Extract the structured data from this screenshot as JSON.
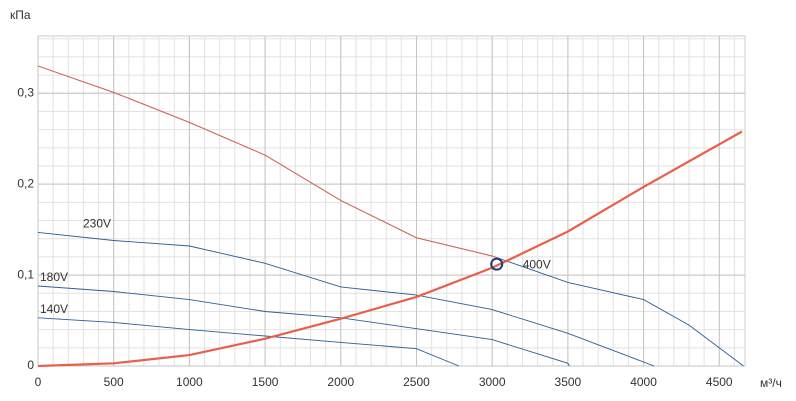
{
  "chart_data": {
    "type": "line",
    "y_unit": "кПа",
    "x_unit": "м³/ч",
    "xlim": [
      0,
      4670
    ],
    "ylim": [
      0,
      0.363
    ],
    "xticks": [
      0,
      500,
      1000,
      1500,
      2000,
      2500,
      3000,
      3500,
      4000,
      4500
    ],
    "yticks": [
      0,
      {
        "value": 0.1,
        "label": "0,1"
      },
      {
        "value": 0.2,
        "label": "0,2"
      },
      {
        "value": 0.3,
        "label": "0,3"
      }
    ],
    "grid": true,
    "minor_grid": {
      "x": 100,
      "y": 0.02
    },
    "series": [
      {
        "name": "400V",
        "color": "#2f5f8f",
        "highlight_color": "#e8604a",
        "width": 0.9,
        "x": [
          0,
          500,
          1000,
          1500,
          2000,
          2500,
          3000,
          3500,
          4000,
          4300,
          4660
        ],
        "values": [
          0.33,
          0.301,
          0.268,
          0.232,
          0.182,
          0.141,
          0.121,
          0.092,
          0.073,
          0.045,
          0
        ]
      },
      {
        "name": "230V",
        "color": "#2f5f8f",
        "width": 0.9,
        "x": [
          0,
          500,
          1000,
          1500,
          2000,
          2500,
          3000,
          3500,
          4070
        ],
        "values": [
          0.147,
          0.138,
          0.132,
          0.113,
          0.087,
          0.078,
          0.062,
          0.036,
          0
        ]
      },
      {
        "name": "180V",
        "color": "#2f5f8f",
        "width": 0.9,
        "x": [
          0,
          500,
          1000,
          1500,
          2000,
          2500,
          3000,
          3500,
          3510
        ],
        "values": [
          0.088,
          0.082,
          0.073,
          0.06,
          0.053,
          0.041,
          0.029,
          0.003,
          0
        ]
      },
      {
        "name": "140V",
        "color": "#2f5f8f",
        "width": 0.9,
        "x": [
          0,
          500,
          1000,
          1500,
          2000,
          2500,
          2780
        ],
        "values": [
          0.053,
          0.048,
          0.04,
          0.033,
          0.026,
          0.019,
          0
        ]
      },
      {
        "color": "#e8604a",
        "width": 2.2,
        "x": [
          0,
          500,
          1000,
          1500,
          2000,
          2500,
          3000,
          3500,
          4000,
          4650
        ],
        "values": [
          0,
          0.003,
          0.012,
          0.03,
          0.052,
          0.076,
          0.108,
          0.148,
          0.197,
          0.258
        ]
      }
    ],
    "operating_point": {
      "x": 3030,
      "y": 0.112,
      "color": "#1f3a6e"
    }
  }
}
